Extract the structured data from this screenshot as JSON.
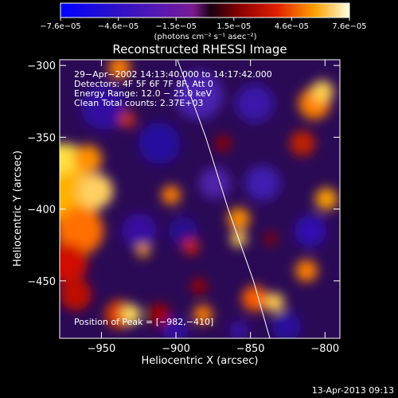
{
  "chart_data": {
    "type": "heatmap",
    "title": "Reconstructed RHESSI Image",
    "xlabel": "Heliocentric X (arcsec)",
    "ylabel": "Heliocentric Y (arcsec)",
    "xlim": [
      -978,
      -790
    ],
    "ylim": [
      -490,
      -296
    ],
    "x_ticks": [
      -950,
      -900,
      -850,
      -800
    ],
    "x_tick_labels": [
      "−950",
      "−900",
      "−850",
      "−800"
    ],
    "y_ticks": [
      -300,
      -350,
      -400,
      -450
    ],
    "y_tick_labels": [
      "−300",
      "−350",
      "−400",
      "−450"
    ],
    "colorbar": {
      "min": -7.6e-05,
      "max": 7.6e-05,
      "tick_labels": [
        "−7.6e−05",
        "−4.6e−05",
        "−1.5e−05",
        "1.5e−05",
        "4.6e−05",
        "7.6e−05"
      ],
      "unit_label": "(photons cm⁻² s⁻¹ asec⁻²)"
    },
    "annotations": [
      "29−Apr−2002 14:13:40.000 to 14:17:42.000",
      "Detectors: 4F 5F 6F 7F 8F, Att 0",
      "Energy Range: 12.0 − 25.0 keV",
      "Clean    Total counts: 2.37E+03"
    ],
    "peak_label": "Position of Peak = [−982,−410]",
    "peak_position": [
      -982,
      -410
    ],
    "limb_points": [
      [
        -899,
        -296
      ],
      [
        -880,
        -350
      ],
      [
        -865,
        -400
      ],
      [
        -848,
        -450
      ],
      [
        -837,
        -490
      ]
    ],
    "grid": false
  },
  "footer": {
    "timestamp": "13-Apr-2013 09:13"
  }
}
